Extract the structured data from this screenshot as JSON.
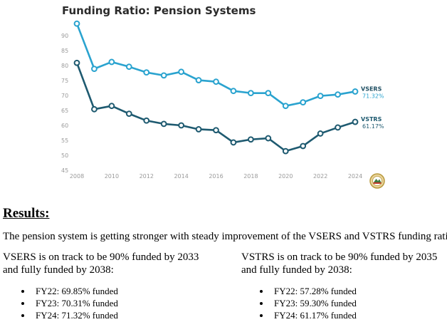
{
  "chart_data": {
    "type": "line",
    "title": "Funding Ratio: Pension Systems",
    "x": [
      2008,
      2009,
      2010,
      2011,
      2012,
      2013,
      2014,
      2015,
      2016,
      2017,
      2018,
      2019,
      2020,
      2021,
      2022,
      2023,
      2024
    ],
    "x_ticks": [
      "2008",
      "2010",
      "2012",
      "2014",
      "2016",
      "2018",
      "2020",
      "2022",
      "2024"
    ],
    "y_ticks": [
      "45",
      "50",
      "55",
      "60",
      "65",
      "70",
      "75",
      "80",
      "85",
      "90"
    ],
    "ylim": [
      45,
      95
    ],
    "grid": false,
    "series": [
      {
        "name": "VSERS",
        "end_label": "71.32%",
        "color": "#2aa3cf",
        "values": [
          94.0,
          78.9,
          81.2,
          79.6,
          77.7,
          76.7,
          77.9,
          75.1,
          74.6,
          71.5,
          70.8,
          70.8,
          66.5,
          67.7,
          69.85,
          70.31,
          71.32
        ]
      },
      {
        "name": "VSTRS",
        "end_label": "61.17%",
        "color": "#1e5a70",
        "values": [
          80.9,
          65.4,
          66.5,
          63.9,
          61.6,
          60.5,
          60.0,
          58.7,
          58.4,
          54.3,
          55.3,
          55.7,
          51.4,
          53.1,
          57.28,
          59.3,
          61.17
        ]
      }
    ],
    "legend": "end-of-line labels"
  },
  "text": {
    "results_heading": "Results:",
    "summary": "The pension system is getting stronger with steady improvement of the VSERS and VSTRS funding ratio.",
    "vsers": {
      "head_line1": "VSERS is on track to be 90% funded by 2033",
      "head_line2": "and fully funded by 2038:",
      "items": [
        "FY22: 69.85% funded",
        "FY23: 70.31% funded",
        "FY24: 71.32% funded"
      ]
    },
    "vstrs": {
      "head_line1": "VSTRS is on track to be 90% funded by 2035",
      "head_line2": "and fully funded by 2038:",
      "items": [
        "FY22: 57.28% funded",
        "FY23: 59.30% funded",
        "FY24: 61.17% funded"
      ]
    }
  }
}
